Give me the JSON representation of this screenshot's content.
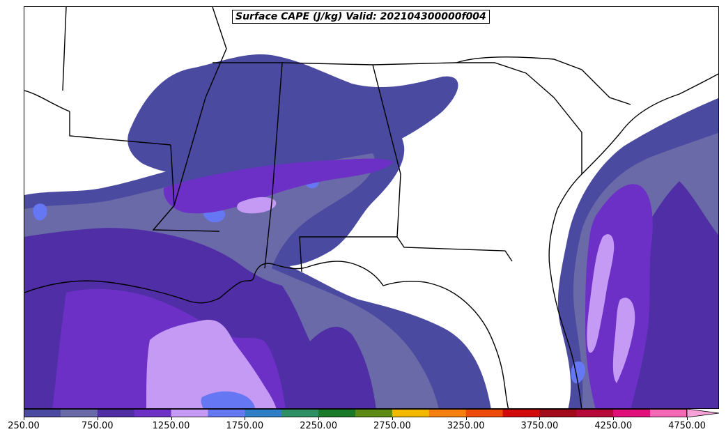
{
  "map": {
    "title": "Surface CAPE (J/kg) Valid: 202104300000f004",
    "units": "J/kg"
  },
  "colorbar": {
    "levels_start": 250,
    "level_step": 250,
    "colors": [
      "#4a4aa0",
      "#6b6aa8",
      "#4f2ea6",
      "#6c30c6",
      "#c59af5",
      "#6677f4",
      "#2f7ec8",
      "#2e8f64",
      "#1b7a2a",
      "#5c8a14",
      "#f2b800",
      "#f57f0f",
      "#ec4b0a",
      "#d10a0a",
      "#a00a1a",
      "#b5093a",
      "#e0107a",
      "#f568b6"
    ],
    "extend_color": "#f8a0d8",
    "tick_labels": [
      "250.00",
      "750.00",
      "1250.00",
      "1750.00",
      "2250.00",
      "2750.00",
      "3250.00",
      "3750.00",
      "4250.00",
      "4750.00"
    ]
  },
  "fill_colors": {
    "level1": "#4a4aa0",
    "level2": "#6b6aa8",
    "level3": "#4f2ea6",
    "level4": "#6c30c6",
    "level5": "#c59af5",
    "level6": "#6677f4"
  }
}
